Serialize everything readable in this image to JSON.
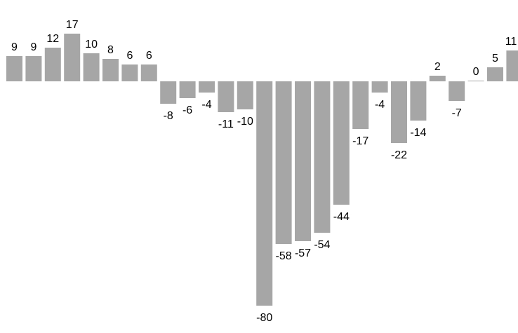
{
  "chart_data": {
    "type": "bar",
    "values": [
      9,
      9,
      12,
      17,
      10,
      8,
      6,
      6,
      -8,
      -6,
      -4,
      -11,
      -10,
      -80,
      -58,
      -57,
      -54,
      -44,
      -17,
      -4,
      -22,
      -14,
      2,
      -7,
      0,
      5,
      11
    ],
    "labels": [
      "9",
      "9",
      "12",
      "17",
      "10",
      "8",
      "6",
      "6",
      "-8",
      "-6",
      "-4",
      "-11",
      "-10",
      "-80",
      "-58",
      "-57",
      "-54",
      "-44",
      "-17",
      "-4",
      "-22",
      "-14",
      "2",
      "-7",
      "0",
      "5",
      "11"
    ],
    "ylim": [
      -80,
      17
    ],
    "grid": false,
    "bar_color": "#a6a6a6"
  }
}
